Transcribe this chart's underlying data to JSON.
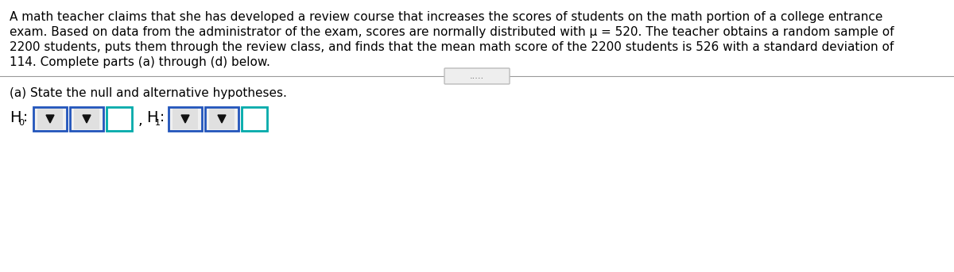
{
  "para_lines": [
    "A math teacher claims that she has developed a review course that increases the scores of students on the math portion of a college entrance",
    "exam. Based on data from the administrator of the exam, scores are normally distributed with μ = 520. The teacher obtains a random sample of",
    "2200 students, puts them through the review class, and finds that the mean math score of the 2200 students is 526 with a standard deviation of",
    "114. Complete parts (a) through (d) below."
  ],
  "dots_text": ".....",
  "section_label": "(a) State the null and alternative hypotheses.",
  "bg_color": "#ffffff",
  "text_color": "#000000",
  "dropdown_border_color": "#2255bb",
  "textbox_border_color": "#00aaaa",
  "dropdown_fill_color": "#d8d8d8",
  "textbox_fill_color": "#ffffff",
  "line_color": "#999999",
  "font_size_para": 11.0,
  "font_size_section": 11.0,
  "font_size_h": 12.0,
  "dots_box_color": "#eeeeee",
  "dots_box_border": "#bbbbbb"
}
